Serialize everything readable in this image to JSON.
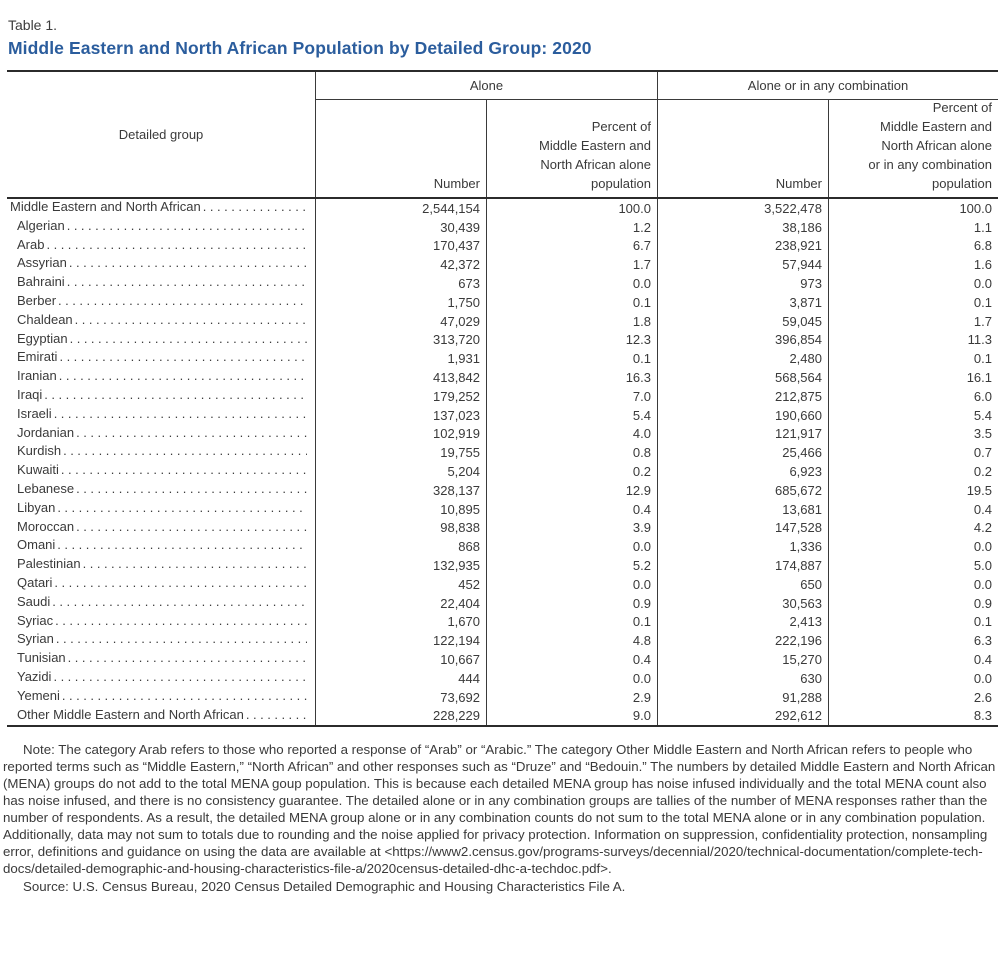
{
  "header": {
    "table_label": "Table 1.",
    "title": "Middle Eastern and North African Population by Detailed Group: 2020",
    "accent_color": "#2b5d9d"
  },
  "table": {
    "headers": {
      "detailed_group": "Detailed group",
      "group_alone": "Alone",
      "group_combo": "Alone or in any combination",
      "alone_number": "Number",
      "alone_percent": "Percent of\nMiddle Eastern and\nNorth African alone\npopulation",
      "combo_number": "Number",
      "combo_percent": "Percent of\nMiddle Eastern and\nNorth African alone\nor in any combination\npopulation"
    },
    "rows": [
      {
        "group": "Middle Eastern and North African",
        "indent": false,
        "alone_number": "2,544,154",
        "alone_percent": "100.0",
        "combo_number": "3,522,478",
        "combo_percent": "100.0"
      },
      {
        "group": "Algerian",
        "indent": true,
        "alone_number": "30,439",
        "alone_percent": "1.2",
        "combo_number": "38,186",
        "combo_percent": "1.1"
      },
      {
        "group": "Arab",
        "indent": true,
        "alone_number": "170,437",
        "alone_percent": "6.7",
        "combo_number": "238,921",
        "combo_percent": "6.8"
      },
      {
        "group": "Assyrian",
        "indent": true,
        "alone_number": "42,372",
        "alone_percent": "1.7",
        "combo_number": "57,944",
        "combo_percent": "1.6"
      },
      {
        "group": "Bahraini",
        "indent": true,
        "alone_number": "673",
        "alone_percent": "0.0",
        "combo_number": "973",
        "combo_percent": "0.0"
      },
      {
        "group": "Berber",
        "indent": true,
        "alone_number": "1,750",
        "alone_percent": "0.1",
        "combo_number": "3,871",
        "combo_percent": "0.1"
      },
      {
        "group": "Chaldean",
        "indent": true,
        "alone_number": "47,029",
        "alone_percent": "1.8",
        "combo_number": "59,045",
        "combo_percent": "1.7"
      },
      {
        "group": "Egyptian",
        "indent": true,
        "alone_number": "313,720",
        "alone_percent": "12.3",
        "combo_number": "396,854",
        "combo_percent": "11.3"
      },
      {
        "group": "Emirati",
        "indent": true,
        "alone_number": "1,931",
        "alone_percent": "0.1",
        "combo_number": "2,480",
        "combo_percent": "0.1"
      },
      {
        "group": "Iranian",
        "indent": true,
        "alone_number": "413,842",
        "alone_percent": "16.3",
        "combo_number": "568,564",
        "combo_percent": "16.1"
      },
      {
        "group": "Iraqi",
        "indent": true,
        "alone_number": "179,252",
        "alone_percent": "7.0",
        "combo_number": "212,875",
        "combo_percent": "6.0"
      },
      {
        "group": "Israeli",
        "indent": true,
        "alone_number": "137,023",
        "alone_percent": "5.4",
        "combo_number": "190,660",
        "combo_percent": "5.4"
      },
      {
        "group": "Jordanian",
        "indent": true,
        "alone_number": "102,919",
        "alone_percent": "4.0",
        "combo_number": "121,917",
        "combo_percent": "3.5"
      },
      {
        "group": "Kurdish",
        "indent": true,
        "alone_number": "19,755",
        "alone_percent": "0.8",
        "combo_number": "25,466",
        "combo_percent": "0.7"
      },
      {
        "group": "Kuwaiti",
        "indent": true,
        "alone_number": "5,204",
        "alone_percent": "0.2",
        "combo_number": "6,923",
        "combo_percent": "0.2"
      },
      {
        "group": "Lebanese",
        "indent": true,
        "alone_number": "328,137",
        "alone_percent": "12.9",
        "combo_number": "685,672",
        "combo_percent": "19.5"
      },
      {
        "group": "Libyan",
        "indent": true,
        "alone_number": "10,895",
        "alone_percent": "0.4",
        "combo_number": "13,681",
        "combo_percent": "0.4"
      },
      {
        "group": "Moroccan",
        "indent": true,
        "alone_number": "98,838",
        "alone_percent": "3.9",
        "combo_number": "147,528",
        "combo_percent": "4.2"
      },
      {
        "group": "Omani",
        "indent": true,
        "alone_number": "868",
        "alone_percent": "0.0",
        "combo_number": "1,336",
        "combo_percent": "0.0"
      },
      {
        "group": "Palestinian",
        "indent": true,
        "alone_number": "132,935",
        "alone_percent": "5.2",
        "combo_number": "174,887",
        "combo_percent": "5.0"
      },
      {
        "group": "Qatari",
        "indent": true,
        "alone_number": "452",
        "alone_percent": "0.0",
        "combo_number": "650",
        "combo_percent": "0.0"
      },
      {
        "group": "Saudi",
        "indent": true,
        "alone_number": "22,404",
        "alone_percent": "0.9",
        "combo_number": "30,563",
        "combo_percent": "0.9"
      },
      {
        "group": "Syriac",
        "indent": true,
        "alone_number": "1,670",
        "alone_percent": "0.1",
        "combo_number": "2,413",
        "combo_percent": "0.1"
      },
      {
        "group": "Syrian",
        "indent": true,
        "alone_number": "122,194",
        "alone_percent": "4.8",
        "combo_number": "222,196",
        "combo_percent": "6.3"
      },
      {
        "group": "Tunisian",
        "indent": true,
        "alone_number": "10,667",
        "alone_percent": "0.4",
        "combo_number": "15,270",
        "combo_percent": "0.4"
      },
      {
        "group": "Yazidi",
        "indent": true,
        "alone_number": "444",
        "alone_percent": "0.0",
        "combo_number": "630",
        "combo_percent": "0.0"
      },
      {
        "group": "Yemeni",
        "indent": true,
        "alone_number": "73,692",
        "alone_percent": "2.9",
        "combo_number": "91,288",
        "combo_percent": "2.6"
      },
      {
        "group": "Other Middle Eastern and North African",
        "indent": true,
        "alone_number": "228,229",
        "alone_percent": "9.0",
        "combo_number": "292,612",
        "combo_percent": "8.3"
      }
    ]
  },
  "notes": {
    "note": "Note: The category Arab refers to those who reported a response of “Arab” or “Arabic.” The category Other Middle Eastern and North African refers to people who reported terms such as “Middle Eastern,” “North African” and other responses such as “Druze” and “Bedouin.” The numbers by detailed Middle Eastern and North African (MENA) groups do not add to the total MENA goup population. This is because each detailed MENA group has noise infused individually and the total MENA count also has noise infused, and there is no consistency guarantee. The detailed alone or in any combination groups are tallies of the number of MENA responses rather than the number of respondents. As a result, the detailed MENA group alone or in any combination counts do not sum to the total MENA alone or in any combination population. Additionally, data may not sum to totals due to rounding and the noise applied for privacy protection. Information on suppression, confidentiality protection, nonsampling error, definitions and guidance on using the data are available at <https://www2.census.gov/programs-surveys/decennial/2020/technical-documentation/complete-tech-docs/detailed-demographic-and-housing-characteristics-file-a/2020census-detailed-dhc-a-techdoc.pdf>.",
    "source": "Source: U.S. Census Bureau, 2020 Census Detailed Demographic and Housing Characteristics File A."
  }
}
